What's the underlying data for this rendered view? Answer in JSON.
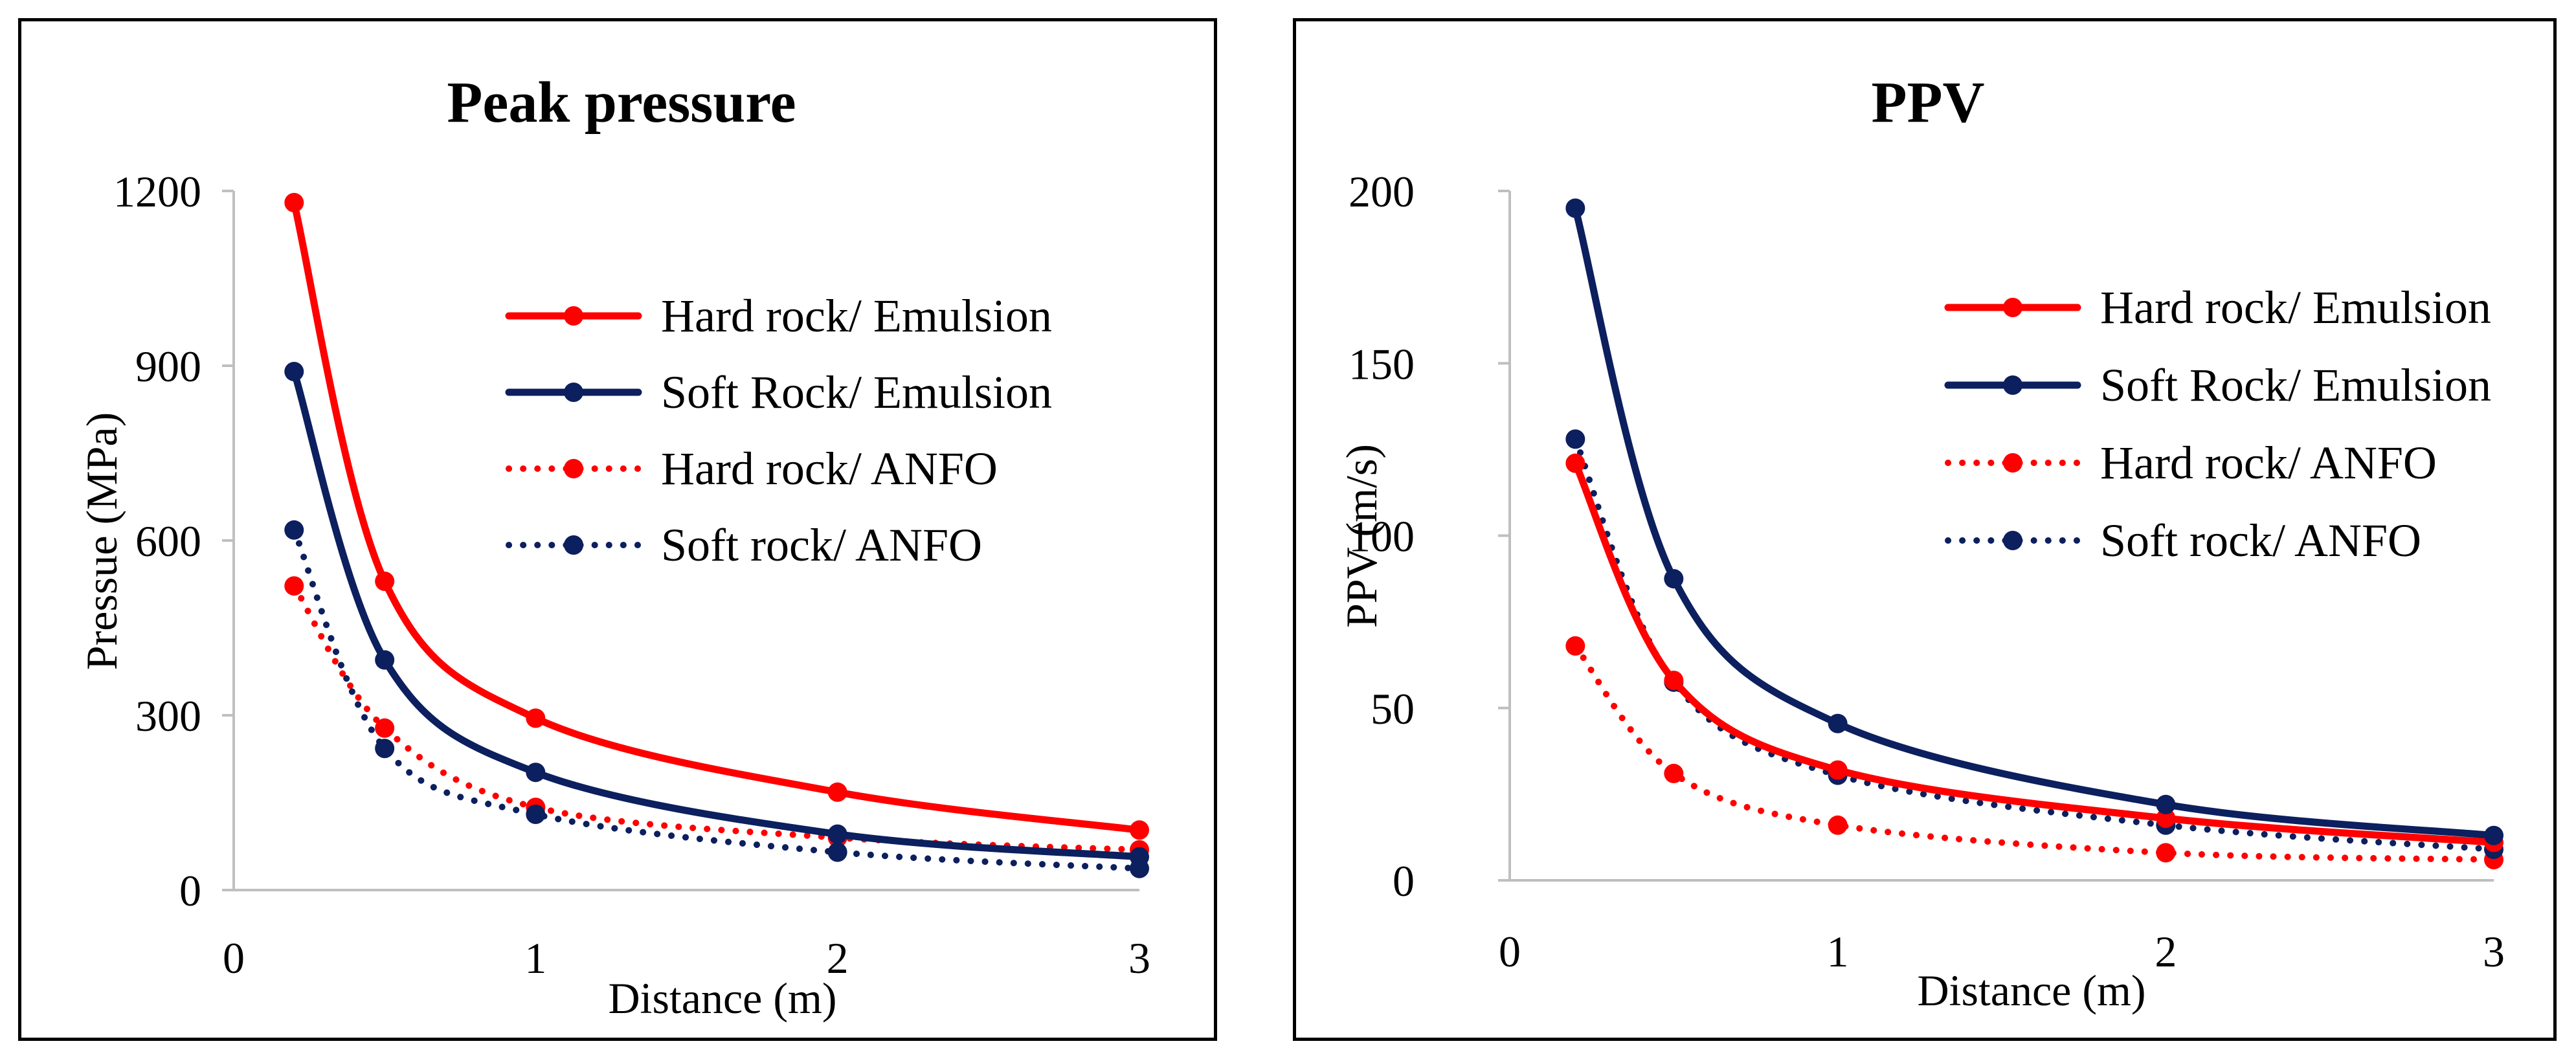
{
  "chart_data": [
    {
      "type": "line",
      "title": "Peak pressure",
      "xlabel": "Distance (m)",
      "ylabel": "Pressue (MPa)",
      "xlim": [
        0,
        3
      ],
      "ylim": [
        0,
        1200
      ],
      "xticks": [
        0,
        1,
        2,
        3
      ],
      "yticks": [
        0,
        300,
        600,
        900,
        1200
      ],
      "x": [
        0.2,
        0.5,
        1,
        2,
        3
      ],
      "legend_position": "top-right",
      "series": [
        {
          "name": "Hard rock/ Emulsion",
          "color": "#ff0000",
          "style": "solid",
          "values": [
            1180,
            530,
            295,
            168,
            103
          ]
        },
        {
          "name": "Soft Rock/ Emulsion",
          "color": "#0c1f5e",
          "style": "solid",
          "values": [
            890,
            395,
            202,
            96,
            57
          ]
        },
        {
          "name": "Hard rock/ ANFO",
          "color": "#ff0000",
          "style": "dotted",
          "values": [
            522,
            278,
            142,
            90,
            69
          ]
        },
        {
          "name": "Soft rock/ ANFO",
          "color": "#0c1f5e",
          "style": "dotted",
          "values": [
            618,
            243,
            130,
            65,
            37
          ]
        }
      ]
    },
    {
      "type": "line",
      "title": "PPV",
      "xlabel": "Distance (m)",
      "ylabel": "PPV (m/s)",
      "xlim": [
        0,
        3
      ],
      "ylim": [
        0,
        200
      ],
      "xticks": [
        0,
        1,
        2,
        3
      ],
      "yticks": [
        0,
        50,
        100,
        150,
        200
      ],
      "x": [
        0.2,
        0.5,
        1,
        2,
        3
      ],
      "legend_position": "top-right",
      "series": [
        {
          "name": "Hard rock/ Emulsion",
          "color": "#ff0000",
          "style": "solid",
          "values": [
            121,
            58,
            32,
            18,
            11
          ]
        },
        {
          "name": "Soft Rock/ Emulsion",
          "color": "#0c1f5e",
          "style": "solid",
          "values": [
            195,
            87.5,
            45.5,
            22,
            13
          ]
        },
        {
          "name": "Hard rock/ ANFO",
          "color": "#ff0000",
          "style": "dotted",
          "values": [
            68,
            31,
            16,
            8,
            6
          ]
        },
        {
          "name": "Soft rock/ ANFO",
          "color": "#0c1f5e",
          "style": "dotted",
          "values": [
            128,
            57.5,
            30.5,
            16,
            9
          ]
        }
      ]
    }
  ]
}
